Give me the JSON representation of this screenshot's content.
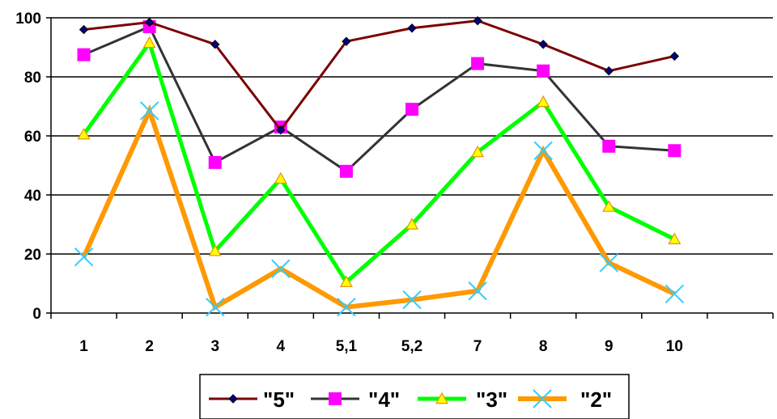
{
  "chart_data": {
    "type": "line",
    "categories": [
      "1",
      "2",
      "3",
      "4",
      "5,1",
      "5,2",
      "7",
      "8",
      "9",
      "10"
    ],
    "y_ticks": [
      "0",
      "20",
      "40",
      "60",
      "80",
      "100"
    ],
    "ylim": [
      0,
      100
    ],
    "grid": "horizontal",
    "legend_position": "bottom",
    "series": [
      {
        "name": "\"5\"",
        "values": [
          96,
          98.5,
          91,
          62,
          92,
          96.5,
          99,
          91,
          82,
          87
        ],
        "color": "#7B0000",
        "width": 3,
        "marker": "diamond",
        "marker_color": "#000080"
      },
      {
        "name": "\"4\"",
        "values": [
          87.5,
          97,
          51,
          63,
          48,
          69,
          84.5,
          82,
          56.5,
          55
        ],
        "color": "#333333",
        "width": 3,
        "marker": "square",
        "marker_color": "#FF00FF"
      },
      {
        "name": "\"3\"",
        "values": [
          60.5,
          91.5,
          21,
          45.5,
          10.5,
          30,
          54.5,
          71.5,
          36,
          25
        ],
        "color": "#00FF00",
        "width": 5,
        "marker": "triangle",
        "marker_color": "#FFFF00"
      },
      {
        "name": "\"2\"",
        "values": [
          19,
          68.5,
          2,
          15,
          2,
          4.5,
          7.5,
          55,
          17,
          6.5
        ],
        "color": "#FF9900",
        "width": 6,
        "marker": "x",
        "marker_color": "#33CCFF"
      }
    ]
  }
}
